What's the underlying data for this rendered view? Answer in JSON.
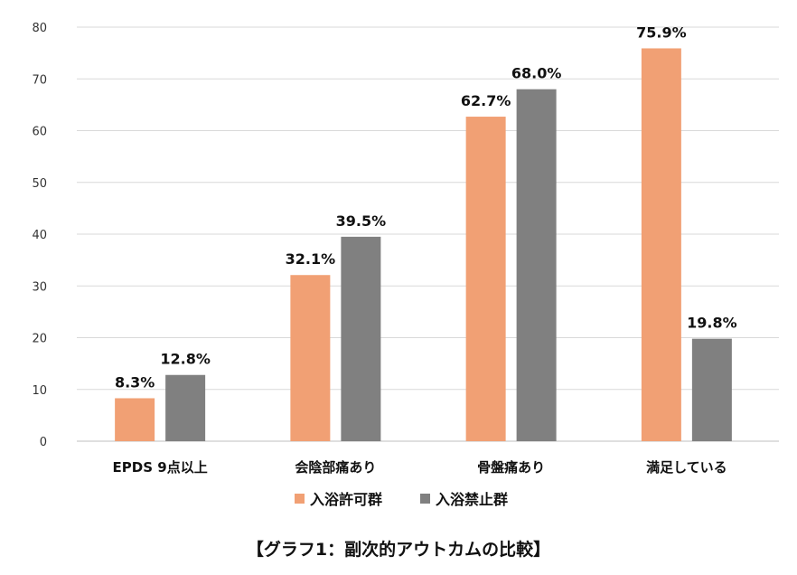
{
  "chart_data": {
    "type": "bar",
    "title": "【グラフ1：副次的アウトカムの比較】",
    "categories": [
      "EPDS 9点以上",
      "会陰部痛あり",
      "骨盤痛あり",
      "満足している"
    ],
    "series": [
      {
        "name": "入浴許可群",
        "values": [
          8.3,
          32.1,
          62.7,
          75.9
        ],
        "color": "#F1A074"
      },
      {
        "name": "入浴禁止群",
        "values": [
          12.8,
          39.5,
          68.0,
          19.8
        ],
        "color": "#808080"
      }
    ],
    "data_labels": [
      [
        "8.3%",
        "32.1%",
        "62.7%",
        "75.9%"
      ],
      [
        "12.8%",
        "39.5%",
        "68.0%",
        "19.8%"
      ]
    ],
    "yticks": [
      "0",
      "10",
      "20",
      "30",
      "40",
      "50",
      "60",
      "70",
      "80"
    ],
    "ylim": [
      0,
      80
    ],
    "xlabel": "",
    "ylabel": "",
    "grid": true,
    "legend_position": "bottom"
  }
}
